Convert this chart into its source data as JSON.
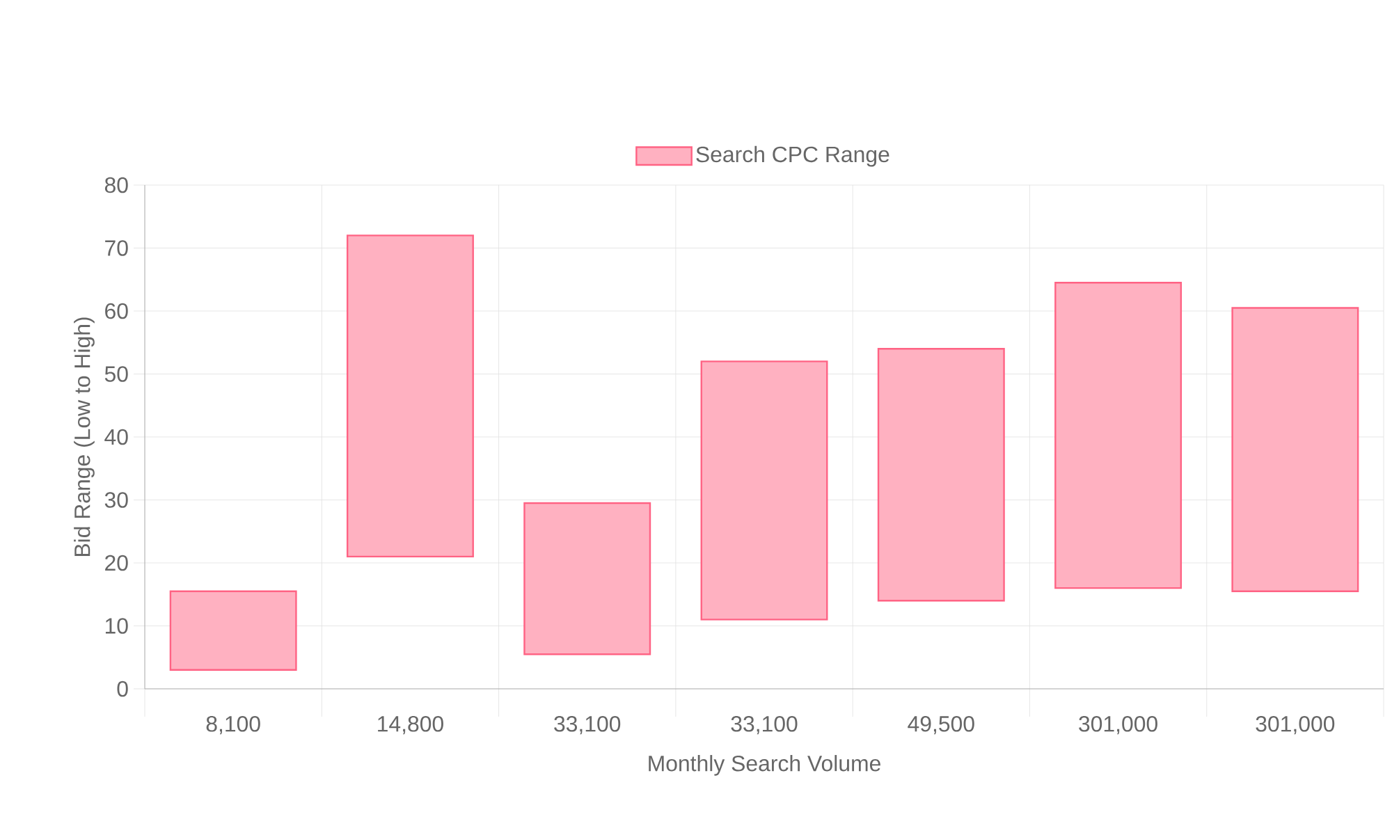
{
  "chart_data": {
    "type": "bar",
    "xlabel": "Monthly Search Volume",
    "ylabel": "Bid Range (Low to High)",
    "categories": [
      "8,100",
      "14,800",
      "33,100",
      "33,100",
      "49,500",
      "301,000",
      "301,000"
    ],
    "series": [
      {
        "name": "Search CPC Range",
        "color": "#ff6384",
        "base": [
          3,
          21,
          5.5,
          11,
          14,
          16,
          15.5
        ],
        "values": [
          12.5,
          51,
          24,
          41,
          40,
          48.5,
          45
        ]
      }
    ],
    "ylim": [
      0,
      80
    ],
    "yticks": [
      0,
      10,
      20,
      30,
      40,
      50,
      60,
      70,
      80
    ],
    "grid": true,
    "legend": "top"
  }
}
